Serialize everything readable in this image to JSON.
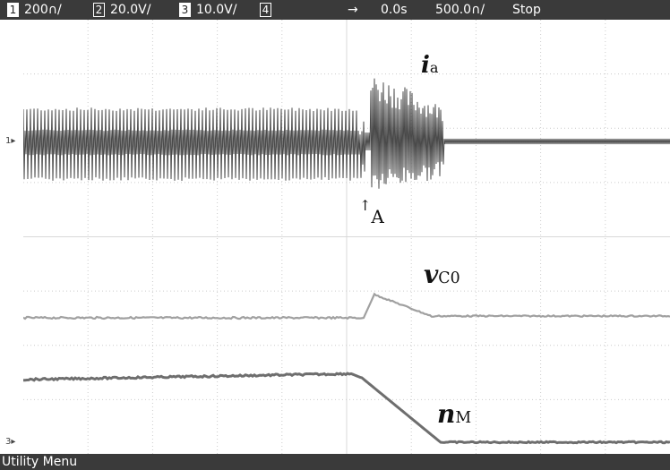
{
  "topbar": {
    "ch1": {
      "num": "1",
      "scale": "200∩/"
    },
    "ch2": {
      "num": "2",
      "scale": "20.0V/"
    },
    "ch3": {
      "num": "3",
      "scale": "10.0V/"
    },
    "ch4": {
      "num": "4"
    },
    "trigger_arrow": "→",
    "delay": "0.0s",
    "timebase": "500.0∩/",
    "run_state": "Stop"
  },
  "markers": {
    "ch1": "1▸",
    "ch3": "3▸"
  },
  "annotations": {
    "ia": {
      "main": "i",
      "sub": "a"
    },
    "vc0": {
      "main": "v",
      "sub": "C0"
    },
    "nm": {
      "main": "n",
      "sub": "M"
    },
    "point_a": {
      "arrow": "↑",
      "label": "A"
    }
  },
  "bottombar": {
    "label": "Utility Menu"
  },
  "colors": {
    "bar": "#3a3a3a",
    "trace_ia": "#4a4a4a",
    "trace_vc0": "#a0a0a0",
    "trace_nm": "#6e6e6e",
    "grid": "#cccccc"
  }
}
